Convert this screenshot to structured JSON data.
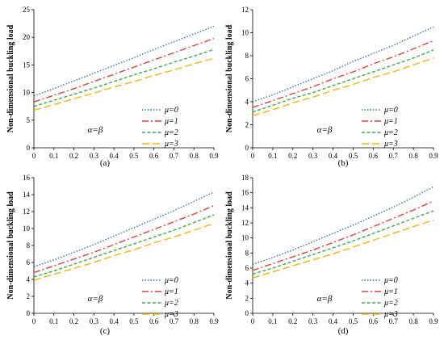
{
  "chart_data": [
    {
      "type": "line",
      "panel_label": "(a)",
      "ylabel": "Non-dimensional buckling load",
      "annotation": "α=β",
      "x": [
        0,
        0.1,
        0.2,
        0.3,
        0.4,
        0.5,
        0.6,
        0.7,
        0.8,
        0.9
      ],
      "x_ticks": [
        "0",
        "0.1",
        "0.2",
        "0.3",
        "0.4",
        "0.5",
        "0.6",
        "0.7",
        "0.8",
        "0.9"
      ],
      "xlim": [
        0,
        0.9
      ],
      "ylim": [
        0,
        25
      ],
      "y_ticks": [
        "0",
        "5",
        "10",
        "15",
        "20",
        "25"
      ],
      "legend_position": "center-right",
      "series": [
        {
          "name": "μ=0",
          "color": "#2E75B6",
          "dash": "dotted",
          "values": [
            9.4,
            10.7,
            12.1,
            13.5,
            14.9,
            16.3,
            17.8,
            19.2,
            20.6,
            22.0
          ]
        },
        {
          "name": "μ=1",
          "color": "#E0403A",
          "dash": "dashdot",
          "values": [
            8.3,
            9.5,
            10.7,
            12.0,
            13.3,
            14.6,
            15.9,
            17.2,
            18.5,
            19.8
          ]
        },
        {
          "name": "μ=2",
          "color": "#3BAA4A",
          "dash": "dashed",
          "values": [
            7.5,
            8.6,
            9.7,
            10.8,
            12.0,
            13.2,
            14.3,
            15.5,
            16.6,
            17.8
          ]
        },
        {
          "name": "μ=3",
          "color": "#F2B50F",
          "dash": "longdash",
          "values": [
            6.8,
            7.8,
            8.9,
            9.9,
            11.0,
            12.0,
            13.1,
            14.1,
            15.2,
            16.2
          ]
        }
      ]
    },
    {
      "type": "line",
      "panel_label": "(b)",
      "ylabel": "Non-dimensional buckling load",
      "annotation": "α=β",
      "x": [
        0,
        0.1,
        0.2,
        0.3,
        0.4,
        0.5,
        0.6,
        0.7,
        0.8,
        0.9
      ],
      "x_ticks": [
        "0",
        "0.1",
        "0.2",
        "0.3",
        "0.4",
        "0.5",
        "0.6",
        "0.7",
        "0.8",
        "0.9"
      ],
      "xlim": [
        0,
        0.9
      ],
      "ylim": [
        0,
        12
      ],
      "y_ticks": [
        "0",
        "2",
        "4",
        "6",
        "8",
        "10",
        "12"
      ],
      "legend_position": "center-right",
      "series": [
        {
          "name": "μ=0",
          "color": "#2E75B6",
          "dash": "dotted",
          "values": [
            4.0,
            4.6,
            5.3,
            6.0,
            6.7,
            7.5,
            8.2,
            8.9,
            9.7,
            10.5
          ]
        },
        {
          "name": "μ=1",
          "color": "#E0403A",
          "dash": "dashdot",
          "values": [
            3.5,
            4.1,
            4.7,
            5.3,
            6.0,
            6.6,
            7.3,
            7.9,
            8.6,
            9.3
          ]
        },
        {
          "name": "μ=2",
          "color": "#3BAA4A",
          "dash": "dashed",
          "values": [
            3.1,
            3.7,
            4.3,
            4.8,
            5.4,
            6.0,
            6.6,
            7.2,
            7.8,
            8.5
          ]
        },
        {
          "name": "μ=3",
          "color": "#F2B50F",
          "dash": "longdash",
          "values": [
            2.8,
            3.3,
            3.9,
            4.4,
            5.0,
            5.5,
            6.1,
            6.6,
            7.2,
            7.8
          ]
        }
      ]
    },
    {
      "type": "line",
      "panel_label": "(c)",
      "ylabel": "Non-dimensional buckling load",
      "annotation": "α=β",
      "x": [
        0,
        0.1,
        0.2,
        0.3,
        0.4,
        0.5,
        0.6,
        0.7,
        0.8,
        0.9
      ],
      "x_ticks": [
        "0",
        "0.1",
        "0.2",
        "0.3",
        "0.4",
        "0.5",
        "0.6",
        "0.7",
        "0.8",
        "0.9"
      ],
      "xlim": [
        0,
        0.9
      ],
      "ylim": [
        0,
        16
      ],
      "y_ticks": [
        "0",
        "2",
        "4",
        "6",
        "8",
        "10",
        "12",
        "14",
        "16"
      ],
      "legend_position": "center-right",
      "series": [
        {
          "name": "μ=0",
          "color": "#2E75B6",
          "dash": "dotted",
          "values": [
            5.5,
            6.3,
            7.2,
            8.1,
            9.1,
            10.1,
            11.1,
            12.1,
            13.2,
            14.3
          ]
        },
        {
          "name": "μ=1",
          "color": "#E0403A",
          "dash": "dashdot",
          "values": [
            4.8,
            5.6,
            6.4,
            7.2,
            8.1,
            9.0,
            9.9,
            10.8,
            11.7,
            12.7
          ]
        },
        {
          "name": "μ=2",
          "color": "#3BAA4A",
          "dash": "dashed",
          "values": [
            4.3,
            5.0,
            5.8,
            6.6,
            7.4,
            8.2,
            9.0,
            9.8,
            10.7,
            11.6
          ]
        },
        {
          "name": "μ=3",
          "color": "#F2B50F",
          "dash": "longdash",
          "values": [
            3.9,
            4.6,
            5.3,
            6.0,
            6.8,
            7.5,
            8.3,
            9.0,
            9.8,
            10.6
          ]
        }
      ]
    },
    {
      "type": "line",
      "panel_label": "(d)",
      "ylabel": "Non-dimensional buckling load",
      "annotation": "α=β",
      "x": [
        0,
        0.1,
        0.2,
        0.3,
        0.4,
        0.5,
        0.6,
        0.7,
        0.8,
        0.9
      ],
      "x_ticks": [
        "0",
        "0.1",
        "0.2",
        "0.3",
        "0.4",
        "0.5",
        "0.6",
        "0.7",
        "0.8",
        "0.9"
      ],
      "xlim": [
        0,
        0.9
      ],
      "ylim": [
        0,
        18
      ],
      "y_ticks": [
        "0",
        "2",
        "4",
        "6",
        "8",
        "10",
        "12",
        "14",
        "16",
        "18"
      ],
      "legend_position": "center-right",
      "series": [
        {
          "name": "μ=0",
          "color": "#2E75B6",
          "dash": "dotted",
          "values": [
            6.5,
            7.4,
            8.4,
            9.5,
            10.6,
            11.7,
            12.9,
            14.1,
            15.4,
            16.8
          ]
        },
        {
          "name": "μ=1",
          "color": "#E0403A",
          "dash": "dashdot",
          "values": [
            5.7,
            6.6,
            7.5,
            8.4,
            9.4,
            10.4,
            11.5,
            12.6,
            13.7,
            14.9
          ]
        },
        {
          "name": "μ=2",
          "color": "#3BAA4A",
          "dash": "dashed",
          "values": [
            5.2,
            6.0,
            6.9,
            7.8,
            8.7,
            9.6,
            10.6,
            11.6,
            12.6,
            13.6
          ]
        },
        {
          "name": "μ=3",
          "color": "#F2B50F",
          "dash": "longdash",
          "values": [
            4.7,
            5.5,
            6.3,
            7.1,
            7.9,
            8.8,
            9.7,
            10.6,
            11.5,
            12.4
          ]
        }
      ]
    }
  ]
}
